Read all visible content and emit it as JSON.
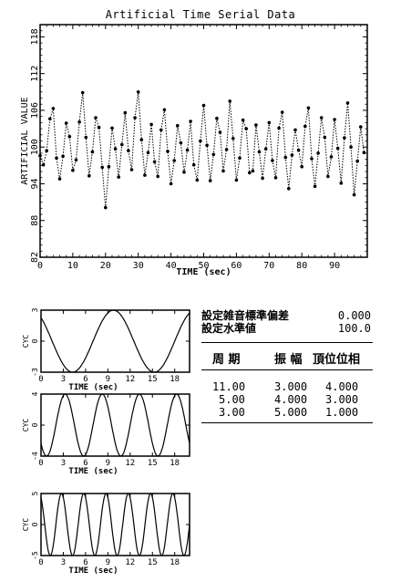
{
  "main_title": "Artificial Time Serial Data",
  "chart_data": [
    {
      "type": "line",
      "title": "Artificial Time Serial Data",
      "xlabel": "TIME (sec)",
      "ylabel": "ARTIFICIAL VALUE",
      "xlim": [
        0,
        100
      ],
      "ylim": [
        82,
        120
      ],
      "x_ticks": [
        0,
        10,
        20,
        30,
        40,
        50,
        60,
        70,
        80,
        90
      ],
      "y_ticks": [
        82,
        88,
        94,
        100,
        106,
        112,
        118
      ],
      "x_tick_labels": [
        "0",
        "10",
        "20",
        "30",
        "40",
        "50",
        "60",
        "70",
        "80",
        "90"
      ],
      "y_tick_labels": [
        "82",
        "88",
        "94",
        "100",
        "106",
        "112",
        "118"
      ],
      "line_style": "dotted with point markers",
      "series": [
        {
          "x": [
            0,
            1,
            2,
            3,
            4,
            5,
            6,
            7,
            8,
            9,
            10,
            11,
            12,
            13,
            14,
            15,
            16,
            17,
            18,
            19,
            20,
            21,
            22,
            23,
            24,
            25,
            26,
            27,
            28,
            29,
            30,
            31,
            32,
            33,
            34,
            35,
            36,
            37,
            38,
            39,
            40,
            41,
            42,
            43,
            44,
            45,
            46,
            47,
            48,
            49,
            50,
            51,
            52,
            53,
            54,
            55,
            56,
            57,
            58,
            59,
            60,
            61,
            62,
            63,
            64,
            65,
            66,
            67,
            68,
            69,
            70,
            71,
            72,
            73,
            74,
            75,
            76,
            77,
            78,
            79,
            80,
            81,
            82,
            83,
            84,
            85,
            86,
            87,
            88,
            89,
            90,
            91,
            92,
            93,
            94,
            95,
            96,
            97,
            98,
            99
          ],
          "y": [
            98.6,
            97.1,
            99.4,
            104.6,
            106.3,
            98.2,
            94.8,
            98.5,
            103.9,
            101.7,
            96.2,
            97.9,
            104.1,
            108.9,
            101.6,
            95.3,
            99.2,
            104.8,
            103.2,
            96.7,
            90.1,
            96.8,
            103.1,
            99.7,
            95.1,
            100.4,
            105.6,
            99.4,
            96.3,
            104.8,
            109.0,
            101.2,
            95.4,
            99.1,
            103.7,
            97.6,
            95.2,
            102.8,
            106.1,
            99.3,
            94.0,
            97.8,
            103.5,
            100.7,
            95.9,
            99.5,
            104.2,
            97.1,
            94.6,
            101.0,
            106.8,
            100.3,
            94.5,
            98.8,
            104.7,
            102.4,
            96.1,
            99.6,
            107.5,
            101.4,
            94.6,
            98.2,
            104.4,
            103.0,
            95.8,
            96.1,
            103.6,
            99.2,
            94.9,
            99.7,
            104.0,
            97.8,
            95.0,
            103.1,
            105.7,
            98.3,
            93.2,
            98.7,
            102.8,
            99.5,
            96.8,
            103.4,
            106.4,
            98.1,
            93.6,
            99.0,
            104.8,
            101.6,
            95.2,
            98.4,
            104.5,
            99.8,
            94.1,
            101.5,
            107.2,
            100.0,
            92.2,
            97.7,
            103.3,
            99.1
          ]
        }
      ]
    },
    {
      "type": "line",
      "xlabel": "TIME (sec)",
      "ylabel": "CYC",
      "xlim": [
        0,
        20
      ],
      "ylim": [
        -3,
        3
      ],
      "x_ticks": [
        0,
        3,
        6,
        9,
        12,
        15,
        18
      ],
      "x_tick_labels": [
        "0",
        "3",
        "6",
        "9",
        "12",
        "15",
        "18"
      ],
      "y_tick_labels": [
        "3",
        "0",
        "-3"
      ],
      "series": [
        {
          "period": 11.0,
          "amplitude": 3.0,
          "phase": 4.0
        }
      ]
    },
    {
      "type": "line",
      "xlabel": "TIME (sec)",
      "ylabel": "CYC",
      "xlim": [
        0,
        20
      ],
      "ylim": [
        -4,
        4
      ],
      "x_ticks": [
        0,
        3,
        6,
        9,
        12,
        15,
        18
      ],
      "x_tick_labels": [
        "0",
        "3",
        "6",
        "9",
        "12",
        "15",
        "18"
      ],
      "y_tick_labels": [
        "4",
        "0",
        "-4"
      ],
      "series": [
        {
          "period": 5.0,
          "amplitude": 4.0,
          "phase": 3.0
        }
      ]
    },
    {
      "type": "line",
      "xlabel": "TIME (sec)",
      "ylabel": "CYC",
      "xlim": [
        0,
        20
      ],
      "ylim": [
        -5,
        5
      ],
      "x_ticks": [
        0,
        3,
        6,
        9,
        12,
        15,
        18
      ],
      "x_tick_labels": [
        "0",
        "3",
        "6",
        "9",
        "12",
        "15",
        "18"
      ],
      "y_tick_labels": [
        "5",
        "0",
        "-5"
      ],
      "series": [
        {
          "period": 3.0,
          "amplitude": 5.0,
          "phase": 1.0
        }
      ]
    }
  ],
  "params": {
    "noise_sd_label": "設定雑音標準偏差",
    "noise_sd_value": "0.000",
    "level_label": "設定水準値",
    "level_value": "100.0"
  },
  "table": {
    "headers": [
      "周 期",
      "振 幅",
      "頂位位相"
    ],
    "rows": [
      [
        "11.00",
        "3.000",
        "4.000"
      ],
      [
        "5.00",
        "4.000",
        "3.000"
      ],
      [
        "3.00",
        "5.000",
        "1.000"
      ]
    ]
  }
}
